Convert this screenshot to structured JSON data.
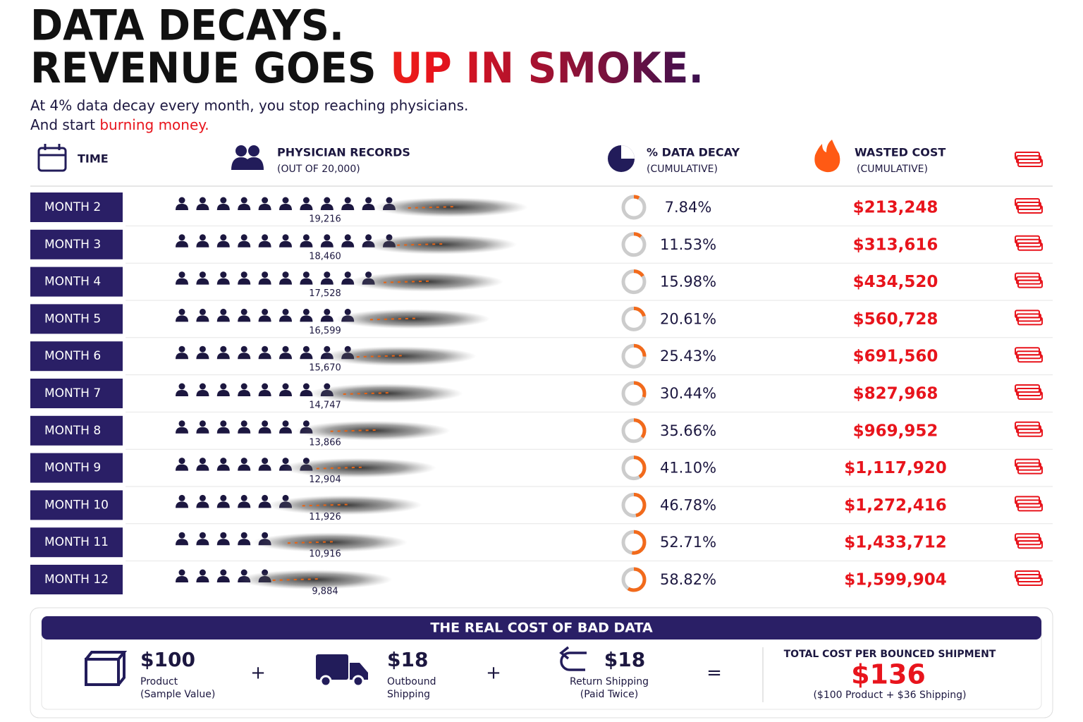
{
  "title_line1": "DATA DECAYS.",
  "title_line2_a": "REVENUE GOES ",
  "title_line2_b": "UP IN SMOKE.",
  "subtitle_line1": "At 4% data decay every month, you stop reaching physicians.",
  "subtitle_line2_a": "And start ",
  "subtitle_line2_b": "burning money.",
  "headers": {
    "time": "TIME",
    "records": "PHYSICIAN RECORDS",
    "records_sub": "(OUT OF 20,000)",
    "total_records": 20000,
    "decay": "% DATA DECAY",
    "decay_sub": "(CUMULATIVE)",
    "cost": "WASTED COST",
    "cost_sub": "(CUMULATIVE)"
  },
  "rows": [
    {
      "month": "MONTH 2",
      "records": "19,216",
      "records_value": 19216,
      "decay": "7.84%",
      "decay_value": 7.84,
      "cost": "$213,248"
    },
    {
      "month": "MONTH 3",
      "records": "18,460",
      "records_value": 18460,
      "decay": "11.53%",
      "decay_value": 11.53,
      "cost": "$313,616"
    },
    {
      "month": "MONTH 4",
      "records": "17,528",
      "records_value": 17528,
      "decay": "15.98%",
      "decay_value": 15.98,
      "cost": "$434,520"
    },
    {
      "month": "MONTH 5",
      "records": "16,599",
      "records_value": 16599,
      "decay": "20.61%",
      "decay_value": 20.61,
      "cost": "$560,728"
    },
    {
      "month": "MONTH 6",
      "records": "15,670",
      "records_value": 15670,
      "decay": "25.43%",
      "decay_value": 25.43,
      "cost": "$691,560"
    },
    {
      "month": "MONTH 7",
      "records": "14,747",
      "records_value": 14747,
      "decay": "30.44%",
      "decay_value": 30.44,
      "cost": "$827,968"
    },
    {
      "month": "MONTH 8",
      "records": "13,866",
      "records_value": 13866,
      "decay": "35.66%",
      "decay_value": 35.66,
      "cost": "$969,952"
    },
    {
      "month": "MONTH 9",
      "records": "12,904",
      "records_value": 12904,
      "decay": "41.10%",
      "decay_value": 41.1,
      "cost": "$1,117,920"
    },
    {
      "month": "MONTH 10",
      "records": "11,926",
      "records_value": 11926,
      "decay": "46.78%",
      "decay_value": 46.78,
      "cost": "$1,272,416"
    },
    {
      "month": "MONTH 11",
      "records": "10,916",
      "records_value": 10916,
      "decay": "52.71%",
      "decay_value": 52.71,
      "cost": "$1,433,712"
    },
    {
      "month": "MONTH 12",
      "records": "9,884",
      "records_value": 9884,
      "decay": "58.82%",
      "decay_value": 58.82,
      "cost": "$1,599,904"
    }
  ],
  "footer": {
    "title": "THE REAL COST OF BAD DATA",
    "items": [
      {
        "amount": "$100",
        "label1": "Product",
        "label2": "(Sample Value)"
      },
      {
        "amount": "$18",
        "label1": "Outbound",
        "label2": "Shipping"
      },
      {
        "amount": "$18",
        "label1": "Return Shipping",
        "label2": "(Paid Twice)"
      }
    ],
    "operators": [
      "+",
      "+",
      "="
    ],
    "total_title": "TOTAL COST PER BOUNCED SHIPMENT",
    "total": "$136",
    "total_note": "($100 Product + $36 Shipping)"
  }
}
